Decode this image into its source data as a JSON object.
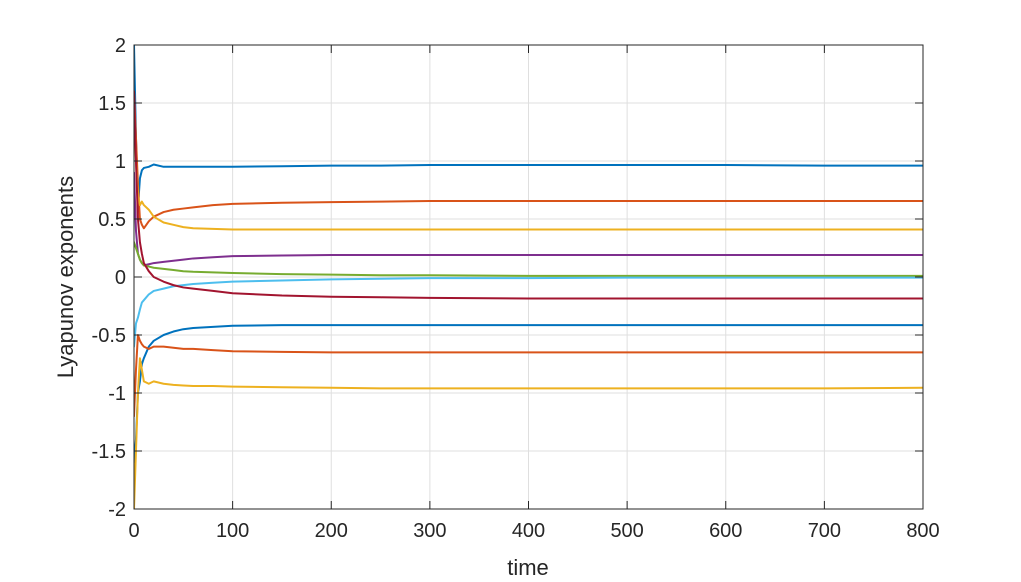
{
  "chart_data": {
    "type": "line",
    "title": "",
    "xlabel": "time",
    "ylabel": "Lyapunov exponents",
    "xlim": [
      0,
      800
    ],
    "ylim": [
      -2,
      2
    ],
    "xticks": [
      0,
      100,
      200,
      300,
      400,
      500,
      600,
      700,
      800
    ],
    "yticks": [
      -2,
      -1.5,
      -1,
      -0.5,
      0,
      0.5,
      1,
      1.5,
      2
    ],
    "xtick_labels": [
      "0",
      "100",
      "200",
      "300",
      "400",
      "500",
      "600",
      "700",
      "800"
    ],
    "ytick_labels": [
      "-2",
      "-1.5",
      "-1",
      "-0.5",
      "0",
      "0.5",
      "1",
      "1.5",
      "2"
    ],
    "grid": true,
    "legend": "none",
    "x": [
      0,
      2,
      4,
      6,
      8,
      10,
      15,
      20,
      30,
      40,
      50,
      60,
      80,
      100,
      150,
      200,
      250,
      300,
      400,
      500,
      600,
      700,
      800
    ],
    "series": [
      {
        "color": "#0072bd",
        "values": [
          2.0,
          1.2,
          0.6,
          0.85,
          0.92,
          0.94,
          0.95,
          0.97,
          0.95,
          0.95,
          0.95,
          0.95,
          0.95,
          0.95,
          0.955,
          0.96,
          0.96,
          0.965,
          0.965,
          0.965,
          0.965,
          0.96,
          0.96
        ]
      },
      {
        "color": "#d95319",
        "values": [
          1.6,
          1.2,
          0.8,
          0.5,
          0.45,
          0.42,
          0.48,
          0.52,
          0.56,
          0.58,
          0.59,
          0.6,
          0.62,
          0.63,
          0.64,
          0.645,
          0.65,
          0.655,
          0.655,
          0.655,
          0.655,
          0.655,
          0.655
        ]
      },
      {
        "color": "#edb120",
        "values": [
          1.5,
          1.0,
          0.7,
          0.62,
          0.65,
          0.62,
          0.58,
          0.52,
          0.47,
          0.45,
          0.43,
          0.42,
          0.415,
          0.41,
          0.41,
          0.41,
          0.41,
          0.41,
          0.41,
          0.41,
          0.41,
          0.41,
          0.41
        ]
      },
      {
        "color": "#7e2f8e",
        "values": [
          0.9,
          0.4,
          0.2,
          0.15,
          0.12,
          0.1,
          0.11,
          0.12,
          0.13,
          0.14,
          0.15,
          0.16,
          0.17,
          0.18,
          0.185,
          0.19,
          0.19,
          0.19,
          0.19,
          0.19,
          0.19,
          0.19,
          0.19
        ]
      },
      {
        "color": "#77ac30",
        "values": [
          0.3,
          0.25,
          0.2,
          0.15,
          0.12,
          0.1,
          0.09,
          0.08,
          0.07,
          0.06,
          0.05,
          0.045,
          0.04,
          0.035,
          0.025,
          0.02,
          0.015,
          0.015,
          0.01,
          0.01,
          0.01,
          0.01,
          0.01
        ]
      },
      {
        "color": "#4dbeee",
        "values": [
          -0.6,
          -0.4,
          -0.35,
          -0.28,
          -0.22,
          -0.2,
          -0.15,
          -0.12,
          -0.1,
          -0.08,
          -0.07,
          -0.06,
          -0.05,
          -0.04,
          -0.03,
          -0.02,
          -0.015,
          -0.01,
          -0.01,
          -0.005,
          -0.005,
          -0.005,
          -0.005
        ]
      },
      {
        "color": "#a2142f",
        "values": [
          1.6,
          1.0,
          0.5,
          0.3,
          0.2,
          0.12,
          0.05,
          0.0,
          -0.04,
          -0.07,
          -0.09,
          -0.1,
          -0.12,
          -0.14,
          -0.16,
          -0.17,
          -0.175,
          -0.18,
          -0.185,
          -0.185,
          -0.185,
          -0.185,
          -0.185
        ]
      },
      {
        "color": "#0072bd",
        "values": [
          -1.6,
          -1.4,
          -1.0,
          -0.9,
          -0.75,
          -0.7,
          -0.6,
          -0.55,
          -0.5,
          -0.47,
          -0.45,
          -0.44,
          -0.43,
          -0.42,
          -0.415,
          -0.415,
          -0.415,
          -0.415,
          -0.415,
          -0.415,
          -0.415,
          -0.415,
          -0.415
        ]
      },
      {
        "color": "#d95319",
        "values": [
          -1.2,
          -0.8,
          -0.5,
          -0.55,
          -0.58,
          -0.6,
          -0.62,
          -0.6,
          -0.6,
          -0.61,
          -0.62,
          -0.62,
          -0.63,
          -0.64,
          -0.645,
          -0.65,
          -0.65,
          -0.65,
          -0.65,
          -0.65,
          -0.65,
          -0.65,
          -0.65
        ]
      },
      {
        "color": "#edb120",
        "values": [
          -2.0,
          -1.5,
          -1.0,
          -0.7,
          -0.8,
          -0.9,
          -0.92,
          -0.9,
          -0.92,
          -0.93,
          -0.935,
          -0.94,
          -0.94,
          -0.945,
          -0.95,
          -0.955,
          -0.96,
          -0.96,
          -0.96,
          -0.96,
          -0.96,
          -0.96,
          -0.955
        ]
      }
    ]
  }
}
